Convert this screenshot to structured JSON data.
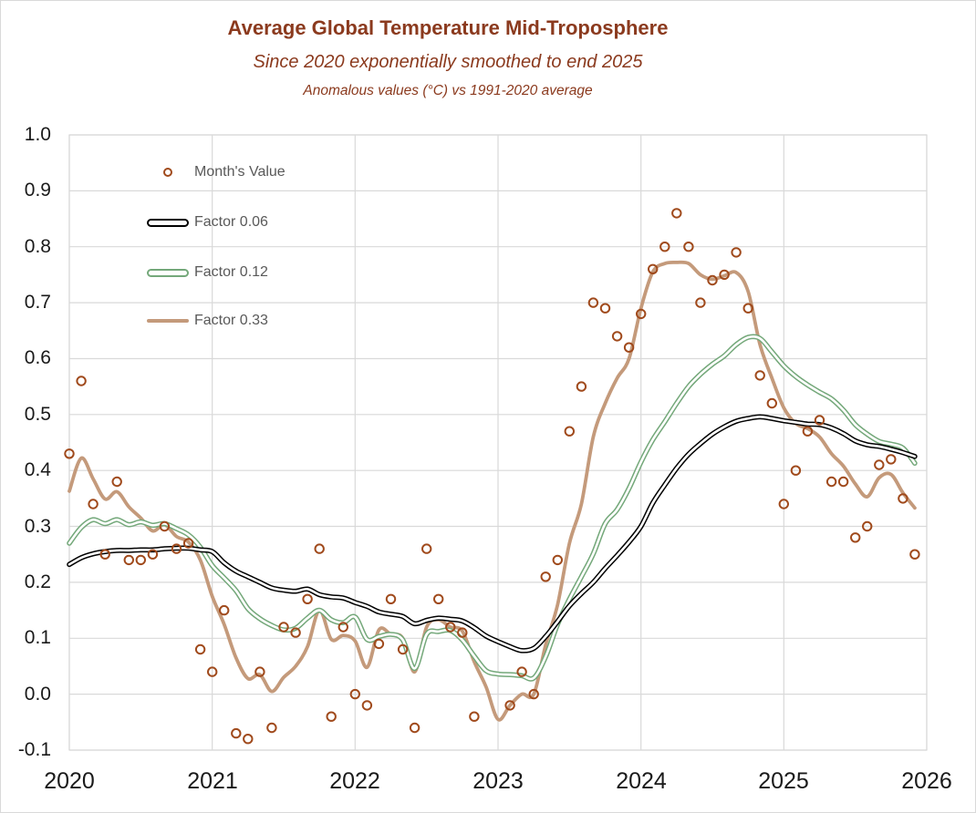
{
  "header": {
    "title": "Average Global Temperature Mid-Troposphere",
    "subtitle1": "Since 2020 exponentially smoothed to end 2025",
    "subtitle2": "Anomalous values (°C) vs 1991-2020 average"
  },
  "colors": {
    "title_text": "#8b3a1e",
    "legend_text": "#595959",
    "axis_text": "#1a1a1a",
    "grid": "#d9d9d9",
    "scatter": "#a04a1c",
    "factor_006": "#000000",
    "factor_012": "#74a87a",
    "factor_033": "#c49a7b",
    "line_core": "#ffffff"
  },
  "chart_data": {
    "type": "scatter+line",
    "title": "Average Global Temperature Mid-Troposphere",
    "subtitles": [
      "Since 2020 exponentially smoothed to end 2025",
      "Anomalous values (°C) vs 1991-2020 average"
    ],
    "xlabel": "",
    "ylabel": "",
    "xlim": [
      2020,
      2026
    ],
    "ylim": [
      -0.1,
      1.0
    ],
    "x_ticks": [
      "2020",
      "2021",
      "2022",
      "2023",
      "2024",
      "2025",
      "2026"
    ],
    "y_ticks": [
      1.0,
      0.9,
      0.8,
      0.7,
      0.6,
      0.5,
      0.4,
      0.3,
      0.2,
      0.1,
      0.0,
      -0.1
    ],
    "grid": true,
    "legend_position": "upper-left-inside",
    "x_start": "2020-01",
    "interval": "monthly",
    "scatter": {
      "name": "Month's Value",
      "marker": "open-circle",
      "values": [
        0.43,
        0.56,
        0.34,
        0.25,
        0.38,
        0.24,
        0.24,
        0.25,
        0.3,
        0.26,
        0.27,
        0.08,
        0.04,
        0.15,
        -0.07,
        -0.08,
        0.04,
        -0.06,
        0.12,
        0.11,
        0.17,
        0.26,
        -0.04,
        0.12,
        0.0,
        -0.02,
        0.09,
        0.17,
        0.08,
        -0.06,
        0.26,
        0.17,
        0.12,
        0.11,
        -0.04,
        null,
        null,
        -0.02,
        0.04,
        0.0,
        0.21,
        0.24,
        0.47,
        0.55,
        0.7,
        0.69,
        0.64,
        0.62,
        0.68,
        0.76,
        0.8,
        0.86,
        0.8,
        0.7,
        0.74,
        0.75,
        0.79,
        0.69,
        0.57,
        0.52,
        0.34,
        0.4,
        0.47,
        0.49,
        0.38,
        0.38,
        0.28,
        0.3,
        0.41,
        0.42,
        0.35,
        0.25
      ]
    },
    "series": [
      {
        "name": "Factor 0.06",
        "smoothing_factor": 0.06,
        "style": "outlined",
        "color": "#000000",
        "values": [
          0.232,
          0.244,
          0.251,
          0.255,
          0.257,
          0.257,
          0.258,
          0.258,
          0.26,
          0.261,
          0.261,
          0.258,
          0.255,
          0.235,
          0.22,
          0.21,
          0.2,
          0.19,
          0.186,
          0.184,
          0.188,
          0.178,
          0.174,
          0.172,
          0.164,
          0.157,
          0.147,
          0.143,
          0.139,
          0.126,
          0.132,
          0.136,
          0.134,
          0.131,
          0.119,
          0.104,
          0.094,
          0.085,
          0.078,
          0.082,
          0.103,
          0.13,
          0.158,
          0.18,
          0.2,
          0.225,
          0.248,
          0.272,
          0.3,
          0.342,
          0.374,
          0.404,
          0.429,
          0.448,
          0.465,
          0.478,
          0.488,
          0.493,
          0.496,
          0.493,
          0.489,
          0.486,
          0.483,
          0.482,
          0.476,
          0.466,
          0.453,
          0.446,
          0.443,
          0.438,
          0.432,
          0.425
        ]
      },
      {
        "name": "Factor 0.12",
        "smoothing_factor": 0.12,
        "style": "outlined",
        "color": "#74a87a",
        "values": [
          0.27,
          0.298,
          0.312,
          0.305,
          0.312,
          0.303,
          0.308,
          0.302,
          0.305,
          0.296,
          0.285,
          0.263,
          0.23,
          0.208,
          0.185,
          0.153,
          0.135,
          0.123,
          0.115,
          0.118,
          0.136,
          0.15,
          0.133,
          0.128,
          0.138,
          0.098,
          0.103,
          0.107,
          0.097,
          0.046,
          0.107,
          0.112,
          0.114,
          0.097,
          0.068,
          0.042,
          0.036,
          0.035,
          0.033,
          0.029,
          0.067,
          0.125,
          0.17,
          0.21,
          0.251,
          0.305,
          0.33,
          0.368,
          0.415,
          0.455,
          0.487,
          0.52,
          0.55,
          0.572,
          0.59,
          0.605,
          0.625,
          0.638,
          0.636,
          0.612,
          0.587,
          0.568,
          0.553,
          0.54,
          0.528,
          0.508,
          0.482,
          0.465,
          0.452,
          0.447,
          0.44,
          0.413
        ]
      },
      {
        "name": "Factor 0.33",
        "smoothing_factor": 0.33,
        "style": "solid",
        "color": "#c49a7b",
        "values": [
          0.363,
          0.422,
          0.385,
          0.349,
          0.362,
          0.335,
          0.315,
          0.292,
          0.303,
          0.282,
          0.272,
          0.24,
          0.175,
          0.125,
          0.065,
          0.028,
          0.035,
          0.005,
          0.03,
          0.05,
          0.085,
          0.15,
          0.098,
          0.105,
          0.095,
          0.048,
          0.115,
          0.107,
          0.1,
          0.04,
          0.12,
          0.133,
          0.12,
          0.113,
          0.058,
          0.013,
          -0.045,
          -0.02,
          0.0,
          0.0,
          0.088,
          0.16,
          0.27,
          0.34,
          0.46,
          0.52,
          0.565,
          0.6,
          0.69,
          0.755,
          0.77,
          0.772,
          0.77,
          0.75,
          0.742,
          0.748,
          0.754,
          0.72,
          0.625,
          0.565,
          0.512,
          0.484,
          0.475,
          0.46,
          0.43,
          0.408,
          0.376,
          0.353,
          0.387,
          0.393,
          0.36,
          0.333
        ]
      }
    ]
  }
}
